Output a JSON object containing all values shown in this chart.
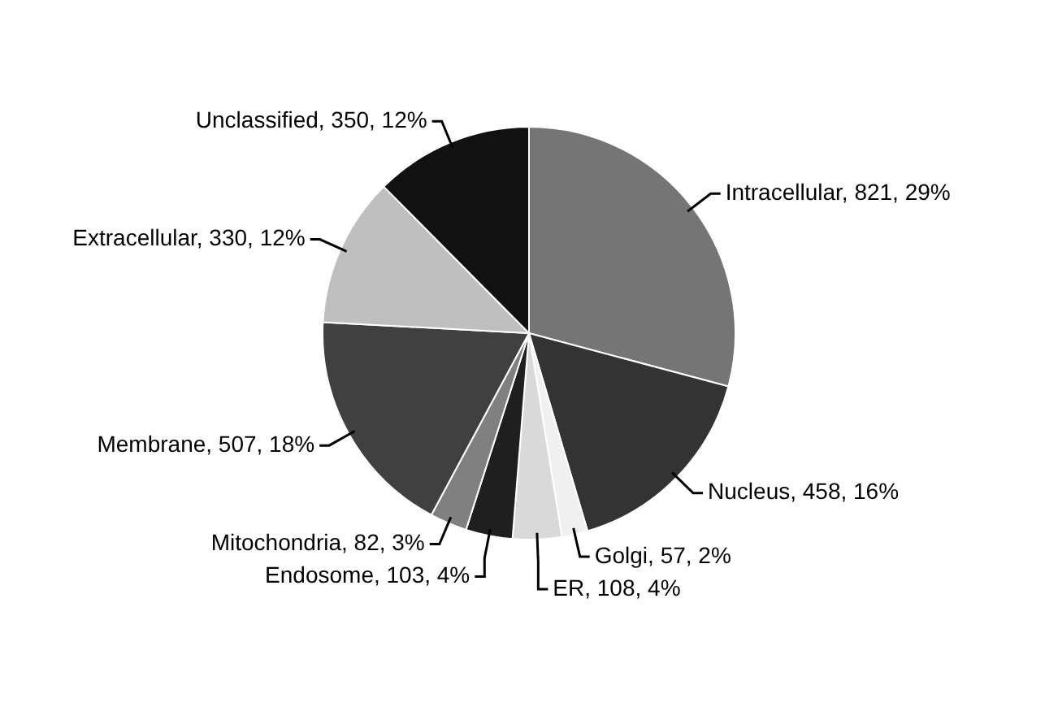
{
  "chart_data": {
    "type": "pie",
    "categories": [
      "Intracellular",
      "Nucleus",
      "Golgi",
      "ER",
      "Endosome",
      "Mitochondria",
      "Membrane",
      "Extracellular",
      "Unclassified"
    ],
    "values": [
      821,
      458,
      57,
      108,
      103,
      82,
      507,
      330,
      350
    ],
    "colors": [
      "#757575",
      "#333333",
      "#f0f0f0",
      "#d9d9d9",
      "#1f1f1f",
      "#808080",
      "#404040",
      "#bfbfbf",
      "#111111"
    ],
    "value_labels": [
      "821, 29%",
      "458, 16%",
      "57, 2%",
      "108, 4%",
      "103, 4%",
      "82, 3%",
      "507, 18%",
      "330, 12%",
      "350, 12%"
    ],
    "legend": false
  }
}
